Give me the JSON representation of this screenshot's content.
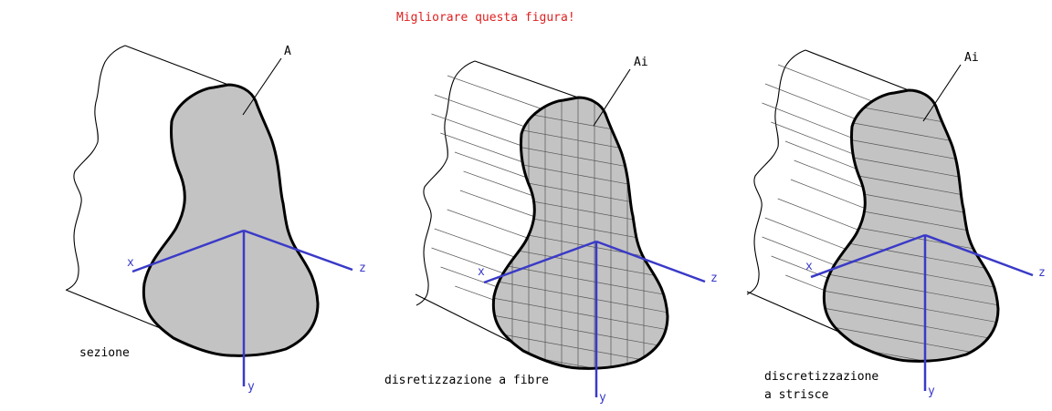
{
  "title": "Migliorare questa figura!",
  "colors": {
    "title": "#e02020",
    "section_fill": "#c3c3c3",
    "axis": "#3a3ac8",
    "outline": "#000000"
  },
  "panels": [
    {
      "id": "sezione",
      "caption": [
        "sezione"
      ],
      "area_label": "A",
      "discretization": "none",
      "axes": {
        "x": "x",
        "y": "y",
        "z": "z"
      }
    },
    {
      "id": "fibre",
      "caption": [
        "disretizzazione a fibre"
      ],
      "area_label": "Ai",
      "discretization": "fibers",
      "axes": {
        "x": "x",
        "y": "y",
        "z": "z"
      }
    },
    {
      "id": "strisce",
      "caption": [
        "discretizzazione",
        "a strisce"
      ],
      "area_label": "Ai",
      "discretization": "strips",
      "axes": {
        "x": "x",
        "y": "y",
        "z": "z"
      }
    }
  ]
}
